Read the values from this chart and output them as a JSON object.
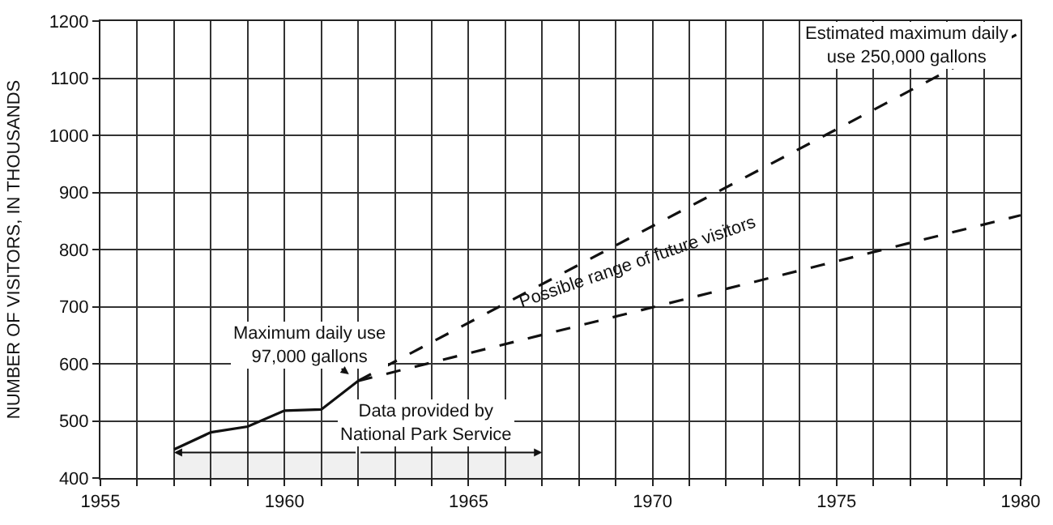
{
  "chart_data": {
    "type": "line",
    "ylabel": "NUMBER OF VISITORS, IN THOUSANDS",
    "series": [
      {
        "x": [
          1957,
          1958,
          1959,
          1960,
          1961,
          1962
        ],
        "values": [
          450,
          480,
          490,
          518,
          520,
          570
        ],
        "color": "#111111",
        "line_style": "solid"
      },
      {
        "x": [
          1962,
          1980
        ],
        "values": [
          570,
          1180
        ],
        "color": "#111111",
        "line_style": "dashed"
      },
      {
        "x": [
          1962,
          1980
        ],
        "values": [
          570,
          860
        ],
        "color": "#111111",
        "line_style": "dashed"
      }
    ],
    "xlim": [
      1955,
      1980
    ],
    "ylim": [
      400,
      1200
    ],
    "xticks": [
      1955,
      {
        "value": 1956,
        "label": null
      },
      {
        "value": 1957,
        "label": null
      },
      {
        "value": 1958,
        "label": null
      },
      {
        "value": 1959,
        "label": null
      },
      1960,
      {
        "value": 1961,
        "label": null
      },
      {
        "value": 1962,
        "label": null
      },
      {
        "value": 1963,
        "label": null
      },
      {
        "value": 1964,
        "label": null
      },
      1965,
      {
        "value": 1966,
        "label": null
      },
      {
        "value": 1967,
        "label": null
      },
      {
        "value": 1968,
        "label": null
      },
      {
        "value": 1969,
        "label": null
      },
      1970,
      {
        "value": 1971,
        "label": null
      },
      {
        "value": 1972,
        "label": null
      },
      {
        "value": 1973,
        "label": null
      },
      {
        "value": 1974,
        "label": null
      },
      1975,
      {
        "value": 1976,
        "label": null
      },
      {
        "value": 1977,
        "label": null
      },
      {
        "value": 1978,
        "label": null
      },
      {
        "value": 1979,
        "label": null
      },
      1980
    ],
    "yticks": [
      400,
      500,
      600,
      700,
      800,
      900,
      1000,
      1100,
      1200
    ],
    "grid": true,
    "annotations": [
      {
        "text": "Maximum daily use\n97,000 gallons",
        "x": 1962,
        "y": 570
      },
      {
        "text": "Estimated maximum daily\nuse 250,000 gallons",
        "x": 1980,
        "y": 1180
      },
      "Possible range of future visitors"
    ],
    "bands": [
      {
        "axis": "x",
        "from": 1957,
        "to": 1967,
        "label": "Data provided by\nNational Park Service"
      }
    ]
  }
}
